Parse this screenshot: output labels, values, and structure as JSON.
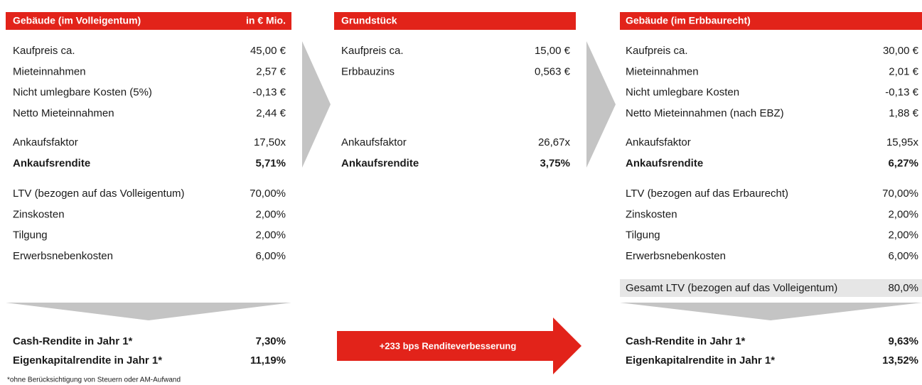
{
  "panels": [
    {
      "title": "Gebäude (im Volleigentum)",
      "unit": "in € Mio.",
      "groups": [
        [
          {
            "label": "Kaufpreis ca.",
            "value": "45,00 €"
          },
          {
            "label": "Mieteinnahmen",
            "value": "2,57 €"
          },
          {
            "label": "Nicht umlegbare Kosten (5%)",
            "value": "-0,13 €"
          },
          {
            "label": "Netto Mieteinnahmen",
            "value": "2,44 €"
          }
        ],
        [
          {
            "label": "Ankaufsfaktor",
            "value": "17,50x"
          },
          {
            "label": "Ankaufsrendite",
            "value": "5,71%",
            "bold": true
          }
        ],
        [
          {
            "label": "LTV (bezogen auf das Volleigentum)",
            "value": "70,00%"
          },
          {
            "label": "Zinskosten",
            "value": "2,00%"
          },
          {
            "label": "Tilgung",
            "value": "2,00%"
          },
          {
            "label": "Erwerbsnebenkosten",
            "value": "6,00%"
          }
        ]
      ],
      "totals": [
        {
          "label": "Cash-Rendite in Jahr 1*",
          "value": "7,30%"
        },
        {
          "label": "Eigenkapitalrendite in Jahr 1*",
          "value": "11,19%"
        }
      ]
    },
    {
      "title": "Grundstück",
      "groups": [
        [
          {
            "label": "Kaufpreis ca.",
            "value": "15,00 €"
          },
          {
            "label": "Erbbauzins",
            "value": "0,563 €"
          }
        ],
        [
          {
            "label": "Ankaufsfaktor",
            "value": "26,67x"
          },
          {
            "label": "Ankaufsrendite",
            "value": "3,75%",
            "bold": true
          }
        ]
      ]
    },
    {
      "title": "Gebäude (im Erbbaurecht)",
      "groups": [
        [
          {
            "label": "Kaufpreis ca.",
            "value": "30,00 €"
          },
          {
            "label": "Mieteinnahmen",
            "value": "2,01 €"
          },
          {
            "label": "Nicht umlegbare Kosten",
            "value": "-0,13 €"
          },
          {
            "label": "Netto Mieteinnahmen (nach EBZ)",
            "value": "1,88 €"
          }
        ],
        [
          {
            "label": "Ankaufsfaktor",
            "value": "15,95x"
          },
          {
            "label": "Ankaufsrendite",
            "value": "6,27%",
            "bold": true
          }
        ],
        [
          {
            "label": "LTV (bezogen auf das Erbaurecht)",
            "value": "70,00%"
          },
          {
            "label": "Zinskosten",
            "value": "2,00%"
          },
          {
            "label": "Tilgung",
            "value": "2,00%"
          },
          {
            "label": "Erwerbsnebenkosten",
            "value": "6,00%"
          }
        ]
      ],
      "summary": {
        "label": "Gesamt LTV (bezogen auf das Volleigentum)",
        "value": "80,0%"
      },
      "totals": [
        {
          "label": "Cash-Rendite in Jahr 1*",
          "value": "9,63%"
        },
        {
          "label": "Eigenkapitalrendite in Jahr 1*",
          "value": "13,52%"
        }
      ]
    }
  ],
  "arrow_label": "+233 bps Renditeverbesserung",
  "footnote": "*ohne Berücksichtigung von Steuern oder AM-Aufwand"
}
